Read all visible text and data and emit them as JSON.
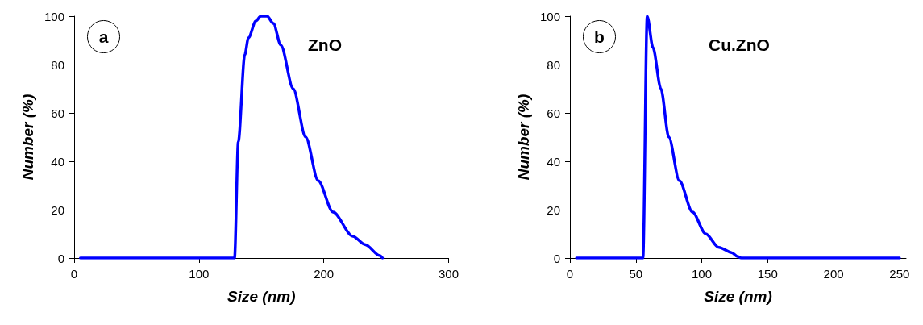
{
  "chart_data": [
    {
      "type": "line",
      "xlabel": "Size (nm)",
      "ylabel": "Number (%)",
      "annotations": [
        "a",
        "ZnO"
      ],
      "xlim": [
        0,
        300
      ],
      "xticks": [
        0,
        100,
        200,
        300
      ],
      "ylim": [
        0,
        100
      ],
      "yticks": [
        0,
        20,
        40,
        60,
        80,
        100
      ],
      "grid": false,
      "marker": "none",
      "line_style": "solid",
      "series": [
        {
          "color": "#0000ff",
          "x": [
            5,
            128.5,
            131.5,
            136.7,
            139.6,
            145.6,
            149.5,
            154.6,
            159.6,
            165.6,
            175.5,
            185.5,
            195.5,
            207.4,
            223.3,
            233,
            245,
            247
          ],
          "values": [
            0,
            0,
            48,
            84,
            91,
            98,
            100,
            100,
            97,
            88,
            70,
            50,
            32,
            19,
            9,
            5.6,
            1,
            0
          ]
        }
      ]
    },
    {
      "type": "line",
      "xlabel": "Size (nm)",
      "ylabel": "Number (%)",
      "annotations": [
        "b",
        "Cu.ZnO"
      ],
      "xlim": [
        0,
        255
      ],
      "xticks": [
        0,
        50,
        100,
        150,
        200,
        250
      ],
      "ylim": [
        0,
        100
      ],
      "yticks": [
        0,
        20,
        40,
        60,
        80,
        100
      ],
      "grid": false,
      "marker": "none",
      "line_style": "solid",
      "series": [
        {
          "color": "#0000ff",
          "x": [
            5,
            55.4,
            58.6,
            63,
            69,
            75,
            83,
            93,
            103,
            113,
            123,
            127,
            130,
            250
          ],
          "values": [
            0,
            0,
            100,
            87,
            70,
            50,
            32,
            19,
            10,
            4.4,
            2.2,
            0.7,
            0,
            0
          ]
        }
      ]
    }
  ]
}
